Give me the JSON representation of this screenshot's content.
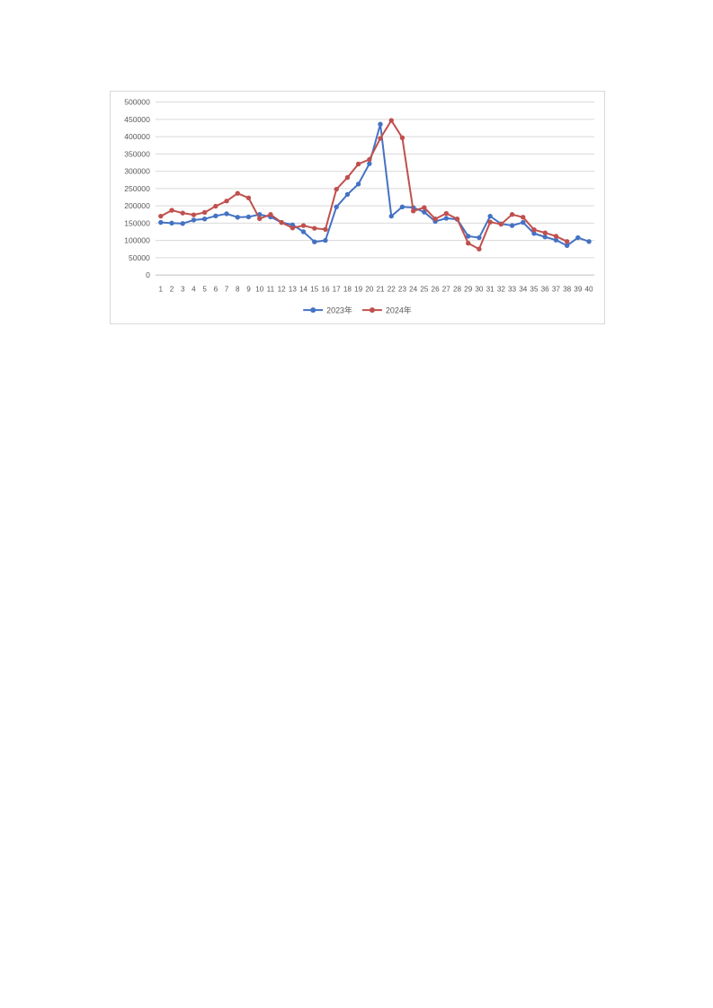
{
  "page": {
    "background_color": "#ffffff"
  },
  "chart_frame": {
    "border_color": "#d9d9d9"
  },
  "chart_data": {
    "type": "line",
    "title": "",
    "xlabel": "",
    "ylabel": "",
    "grid": true,
    "gridline_color": "#d9d9d9",
    "axis_line_color": "#bfbfbf",
    "tick_label_color": "#595959",
    "legend_position": "bottom",
    "legend_text_color": "#595959",
    "x": [
      "1",
      "2",
      "3",
      "4",
      "5",
      "6",
      "7",
      "8",
      "9",
      "10",
      "11",
      "12",
      "13",
      "14",
      "15",
      "16",
      "17",
      "18",
      "19",
      "20",
      "21",
      "22",
      "23",
      "24",
      "25",
      "26",
      "27",
      "28",
      "29",
      "30",
      "31",
      "32",
      "33",
      "34",
      "35",
      "36",
      "37",
      "38",
      "39",
      "40"
    ],
    "y_axis": {
      "min": 0,
      "max": 500000,
      "step": 50000,
      "tick_labels": [
        "0",
        "50000",
        "100000",
        "150000",
        "200000",
        "250000",
        "300000",
        "350000",
        "400000",
        "450000",
        "500000"
      ]
    },
    "series": [
      {
        "name": "2023年",
        "color": "#4472C4",
        "values": [
          152000,
          150000,
          149000,
          159000,
          162000,
          171000,
          177000,
          167000,
          168000,
          175000,
          168000,
          152000,
          145000,
          125000,
          96000,
          100000,
          197000,
          233000,
          263000,
          322000,
          436000,
          170000,
          197000,
          195000,
          182000,
          155000,
          164000,
          161000,
          112000,
          108000,
          170000,
          148000,
          143000,
          152000,
          120000,
          110000,
          101000,
          85000,
          108000,
          97000
        ]
      },
      {
        "name": "2024年",
        "color": "#C0504D",
        "values": [
          170000,
          187000,
          179000,
          174000,
          181000,
          199000,
          214000,
          236000,
          223000,
          163000,
          175000,
          152000,
          136000,
          143000,
          135000,
          132000,
          248000,
          282000,
          321000,
          334000,
          395000,
          447000,
          397000,
          185000,
          195000,
          162000,
          178000,
          162000,
          92000,
          75000,
          153000,
          147000,
          175000,
          167000,
          131000,
          122000,
          112000,
          97000,
          null,
          null
        ]
      }
    ]
  }
}
